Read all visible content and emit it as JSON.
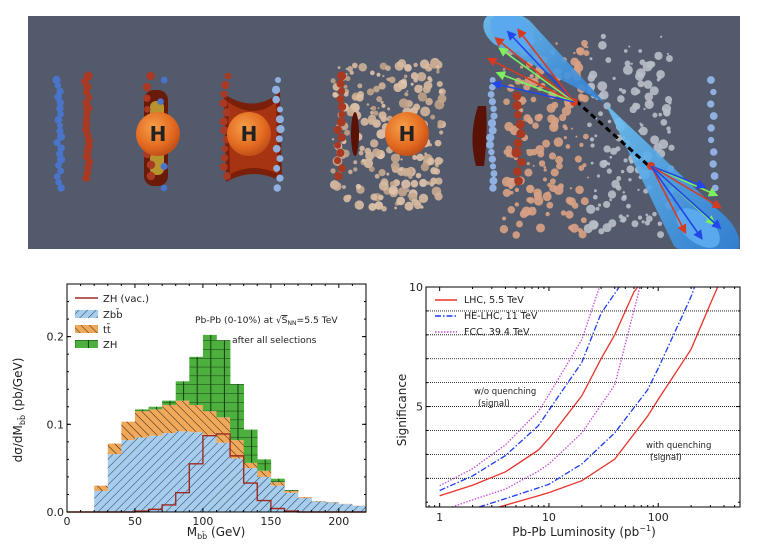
{
  "figure": {
    "illustration": {
      "description": "Schematic of heavy-ion collision producing a Higgs boson, evolving medium, and back-to-back b-jets",
      "higgs_label": "H",
      "stages": [
        "incoming-nuclei",
        "collision-higgs",
        "expanding-medium-higgs",
        "hadronizing-medium-higgs",
        "jets-cone"
      ],
      "colors": {
        "background": "#525a6b",
        "higgs": "#e2691f",
        "higgs_text": "#b8351a",
        "nucleus_blue": "#4a74c9",
        "nucleus_red": "#a83a24",
        "jet_cone": "#4aa3ee"
      }
    }
  },
  "chart_data": [
    {
      "type": "bar",
      "stacked": true,
      "title": "",
      "xlabel": "M_bb̄ (GeV)",
      "ylabel": "dσ/dM_bb̄ (pb/GeV)",
      "xlim": [
        0,
        220
      ],
      "ylim": [
        0,
        0.26
      ],
      "xticks": [
        0,
        50,
        100,
        150,
        200
      ],
      "yticks": [
        0.0,
        0.1,
        0.2
      ],
      "ytick_labels": [
        "0.0",
        "0.1",
        "0.2"
      ],
      "bin_edges": [
        0,
        10,
        20,
        30,
        40,
        50,
        60,
        70,
        80,
        90,
        100,
        110,
        120,
        130,
        140,
        150,
        160,
        170,
        180,
        190,
        200,
        210,
        220
      ],
      "series": [
        {
          "name": "Zbb̄",
          "label_main": "Zb",
          "label_sub": "b̄",
          "color": "#a6cdee",
          "hatch": "diag-right",
          "values": [
            0,
            0,
            0.024,
            0.066,
            0.082,
            0.085,
            0.087,
            0.09,
            0.092,
            0.091,
            0.088,
            0.079,
            0.061,
            0.05,
            0.04,
            0.03,
            0.022,
            0.016,
            0.012,
            0.011,
            0.009,
            0.007
          ]
        },
        {
          "name": "tt̄",
          "label_main": "tt̄",
          "color": "#f0a85a",
          "hatch": "diag-left",
          "values": [
            0,
            0,
            0.006,
            0.012,
            0.021,
            0.03,
            0.03,
            0.032,
            0.035,
            0.031,
            0.027,
            0.029,
            0.021,
            0.006,
            0.007,
            0.004,
            0.002,
            0.001,
            0.0005,
            0.0005,
            0.0003,
            0.0002
          ]
        },
        {
          "name": "ZH",
          "label_main": "ZH",
          "color": "#4caf3e",
          "hatch": "grid",
          "values": [
            0,
            0,
            0,
            0,
            0,
            0.002,
            0.003,
            0.005,
            0.022,
            0.055,
            0.087,
            0.088,
            0.064,
            0.038,
            0.013,
            0.004,
            0.001,
            0,
            0,
            0,
            0,
            0
          ]
        }
      ],
      "line_series": {
        "name": "ZH (vac.)",
        "color": "#9c2a20",
        "values": [
          0,
          0,
          0,
          0,
          0,
          0.001,
          0.003,
          0.008,
          0.022,
          0.055,
          0.087,
          0.089,
          0.064,
          0.033,
          0.013,
          0.004,
          0.001,
          0,
          0,
          0,
          0,
          0
        ]
      },
      "legend": {
        "placement": "top-left",
        "entries": [
          "ZH (vac.)",
          "Zbb̄",
          "tt̄",
          "ZH"
        ]
      },
      "annotations": [
        {
          "text_pre": "Pb-Pb (0-10%) at ",
          "sqrt": "S",
          "sqrt_sub": "NN",
          "text_post": "=5.5 TeV"
        },
        {
          "text": "after all selections"
        }
      ]
    },
    {
      "type": "line",
      "title": "",
      "xlabel": "Pb-Pb Luminosity (pb",
      "xlabel_sup": "−1",
      "xlabel_close": ")",
      "ylabel": "Significance",
      "xscale": "log",
      "xlim": [
        0.75,
        560
      ],
      "ylim": [
        0.8,
        10
      ],
      "xticks": [
        1,
        10,
        100
      ],
      "xtick_labels": [
        "1",
        "10",
        "100"
      ],
      "yticks": [
        5,
        10
      ],
      "ytick_labels": [
        "5",
        "10"
      ],
      "grid": "horizontal-dotted",
      "grid_y": [
        2,
        3,
        4,
        5,
        6,
        7,
        8,
        9
      ],
      "legend": {
        "placement": "top-left"
      },
      "series": [
        {
          "name": "LHC, 5.5 TeV",
          "group": "w/o quenching",
          "color": "#e8332a",
          "dash": "solid",
          "x": [
            1,
            2,
            4,
            8,
            10,
            20,
            30,
            40,
            60,
            65
          ],
          "y": [
            1.27,
            1.71,
            2.27,
            3.18,
            3.67,
            5.45,
            7.0,
            8.0,
            9.8,
            10
          ]
        },
        {
          "name": "HE-LHC, 11 TeV",
          "group": "w/o quenching",
          "color": "#1a3cf0",
          "dash": "dashdot",
          "x": [
            1,
            2,
            4,
            8,
            10,
            20,
            30,
            44
          ],
          "y": [
            1.49,
            2.1,
            2.95,
            4.2,
            4.85,
            6.85,
            8.9,
            10
          ]
        },
        {
          "name": "FCC, 39.4 TeV",
          "group": "w/o quenching",
          "color": "#c74fd8",
          "dash": "dotted",
          "x": [
            1,
            2,
            4,
            8,
            10,
            20,
            29
          ],
          "y": [
            1.69,
            2.4,
            3.4,
            4.8,
            5.5,
            7.8,
            10
          ]
        },
        {
          "name": "LHC, 5.5 TeV",
          "group": "with quenching",
          "color": "#e8332a",
          "dash": "solid",
          "x": [
            3.5,
            8,
            10,
            20,
            40,
            80,
            100,
            200,
            300,
            350
          ],
          "y": [
            0.8,
            1.27,
            1.4,
            1.9,
            2.8,
            4.6,
            5.3,
            7.4,
            9.3,
            10
          ]
        },
        {
          "name": "HE-LHC, 11 TeV",
          "group": "with quenching",
          "color": "#1a3cf0",
          "dash": "dashdot",
          "x": [
            2.3,
            4,
            8,
            10,
            20,
            40,
            80,
            100,
            200,
            215
          ],
          "y": [
            0.8,
            1.15,
            1.6,
            1.75,
            2.6,
            3.9,
            5.7,
            6.6,
            9.6,
            10
          ]
        },
        {
          "name": "FCC, 39.4 TeV",
          "group": "with quenching",
          "color": "#c74fd8",
          "dash": "dotted",
          "x": [
            1.3,
            2,
            4,
            8,
            10,
            20,
            40,
            68
          ],
          "y": [
            0.8,
            1.1,
            1.55,
            2.3,
            2.6,
            3.9,
            5.9,
            10
          ]
        }
      ],
      "annotations": [
        {
          "line1": "w/o quenching",
          "line2": "(signal)"
        },
        {
          "line1": "with quenching",
          "line2": "(signal)"
        }
      ]
    }
  ]
}
